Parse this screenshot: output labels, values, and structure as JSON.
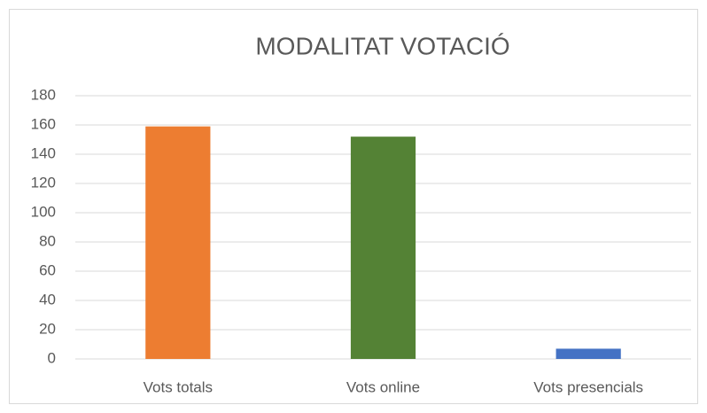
{
  "chart_data": {
    "type": "bar",
    "title": "MODALITAT VOTACIÓ",
    "categories": [
      "Vots totals",
      "Vots online",
      "Vots presencials"
    ],
    "values": [
      159,
      152,
      7
    ],
    "colors": [
      "#ed7d31",
      "#548235",
      "#4472c4"
    ],
    "ylim": [
      0,
      180
    ],
    "yticks": [
      0,
      20,
      40,
      60,
      80,
      100,
      120,
      140,
      160,
      180
    ],
    "grid": true
  }
}
